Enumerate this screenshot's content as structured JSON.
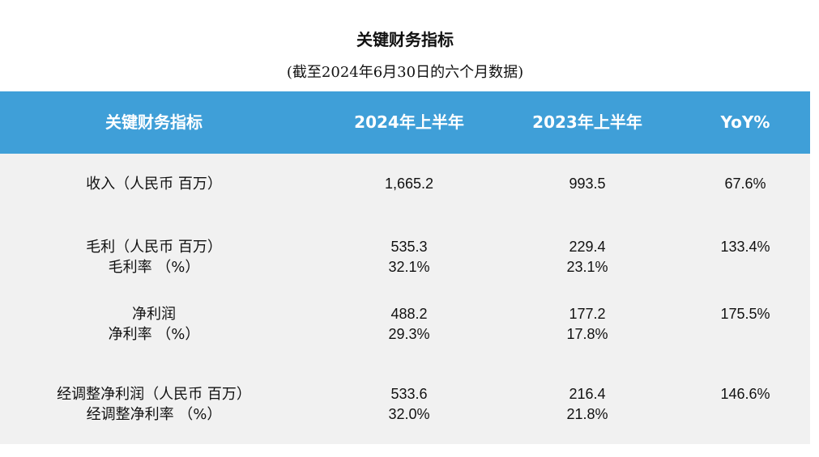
{
  "title": "关键财务指标",
  "subtitle": "(截至2024年6月30日的六个月数据)",
  "table": {
    "headers": [
      "关键财务指标",
      "2024年上半年",
      "2023年上半年",
      "YoY%"
    ],
    "rows": [
      {
        "metric": [
          "收入（人民币 百万）"
        ],
        "h1_2024": [
          "1,665.2"
        ],
        "h1_2023": [
          "993.5"
        ],
        "yoy": "67.6%"
      },
      {
        "metric": [
          "毛利（人民币 百万）",
          "毛利率 （%）"
        ],
        "h1_2024": [
          "535.3",
          "32.1%"
        ],
        "h1_2023": [
          "229.4",
          "23.1%"
        ],
        "yoy": "133.4%"
      },
      {
        "metric": [
          "净利润",
          "净利率 （%）"
        ],
        "h1_2024": [
          "488.2",
          "29.3%"
        ],
        "h1_2023": [
          "177.2",
          "17.8%"
        ],
        "yoy": "175.5%"
      },
      {
        "metric": [
          "经调整净利润（人民币 百万）",
          "经调整净利率 （%）"
        ],
        "h1_2024": [
          "533.6",
          "32.0%"
        ],
        "h1_2023": [
          "216.4",
          "21.8%"
        ],
        "yoy": "146.6%"
      }
    ]
  }
}
